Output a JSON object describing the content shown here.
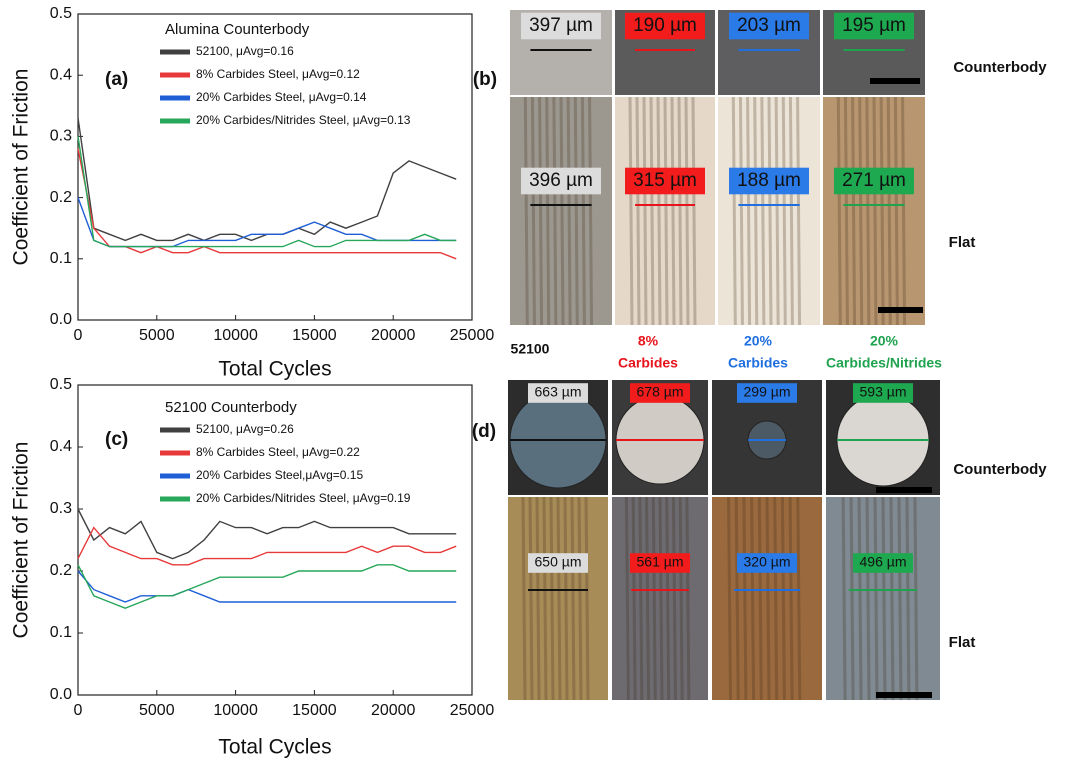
{
  "chart_data": [
    {
      "type": "line",
      "panel_label": "(a)",
      "legend_title": "Alumina Counterbody",
      "xlabel": "Total Cycles",
      "ylabel": "Coefficient of Friction",
      "x": [
        0,
        1000,
        2000,
        3000,
        4000,
        5000,
        6000,
        7000,
        8000,
        9000,
        10000,
        11000,
        12000,
        13000,
        14000,
        15000,
        16000,
        17000,
        18000,
        19000,
        20000,
        21000,
        22000,
        23000,
        24000
      ],
      "series": [
        {
          "name": "52100, μAvg=0.16",
          "color": "#404040",
          "values": [
            0.33,
            0.15,
            0.14,
            0.13,
            0.14,
            0.13,
            0.13,
            0.14,
            0.13,
            0.14,
            0.14,
            0.13,
            0.14,
            0.14,
            0.15,
            0.14,
            0.16,
            0.15,
            0.16,
            0.17,
            0.24,
            0.26,
            0.25,
            0.24,
            0.23
          ]
        },
        {
          "name": "8% Carbides Steel, μAvg=0.12",
          "color": "#e8393a",
          "values": [
            0.28,
            0.15,
            0.12,
            0.12,
            0.11,
            0.12,
            0.11,
            0.11,
            0.12,
            0.11,
            0.11,
            0.11,
            0.11,
            0.11,
            0.11,
            0.11,
            0.11,
            0.11,
            0.11,
            0.11,
            0.11,
            0.11,
            0.11,
            0.11,
            0.1
          ]
        },
        {
          "name": "20% Carbides Steel, μAvg=0.14",
          "color": "#1f5fd6",
          "values": [
            0.2,
            0.13,
            0.12,
            0.12,
            0.12,
            0.12,
            0.12,
            0.13,
            0.13,
            0.13,
            0.13,
            0.14,
            0.14,
            0.14,
            0.15,
            0.16,
            0.15,
            0.14,
            0.14,
            0.13,
            0.13,
            0.13,
            0.13,
            0.13,
            0.13
          ]
        },
        {
          "name": "20% Carbides/Nitrides Steel, μAvg=0.13",
          "color": "#27a75a",
          "values": [
            0.3,
            0.13,
            0.12,
            0.12,
            0.12,
            0.12,
            0.12,
            0.12,
            0.12,
            0.12,
            0.12,
            0.12,
            0.12,
            0.12,
            0.13,
            0.12,
            0.12,
            0.13,
            0.13,
            0.13,
            0.13,
            0.13,
            0.14,
            0.13,
            0.13
          ]
        }
      ],
      "xlim": [
        0,
        25000
      ],
      "xticks": [
        0,
        5000,
        10000,
        15000,
        20000,
        25000
      ],
      "ylim": [
        0,
        0.5
      ],
      "yticks": [
        {
          "value": 0,
          "label": "0.0"
        },
        0.1,
        0.2,
        0.3,
        0.4,
        0.5
      ]
    },
    {
      "type": "line",
      "panel_label": "(c)",
      "legend_title": "52100 Counterbody",
      "xlabel": "Total Cycles",
      "ylabel": "Coefficient of Friction",
      "x": [
        0,
        1000,
        2000,
        3000,
        4000,
        5000,
        6000,
        7000,
        8000,
        9000,
        10000,
        11000,
        12000,
        13000,
        14000,
        15000,
        16000,
        17000,
        18000,
        19000,
        20000,
        21000,
        22000,
        23000,
        24000
      ],
      "series": [
        {
          "name": "52100, μAvg=0.26",
          "color": "#404040",
          "values": [
            0.3,
            0.25,
            0.27,
            0.26,
            0.28,
            0.23,
            0.22,
            0.23,
            0.25,
            0.28,
            0.27,
            0.27,
            0.26,
            0.27,
            0.27,
            0.28,
            0.27,
            0.27,
            0.27,
            0.27,
            0.27,
            0.26,
            0.26,
            0.26,
            0.26
          ]
        },
        {
          "name": "8% Carbides Steel, μAvg=0.22",
          "color": "#e8393a",
          "values": [
            0.22,
            0.27,
            0.24,
            0.23,
            0.22,
            0.22,
            0.21,
            0.21,
            0.22,
            0.22,
            0.22,
            0.22,
            0.23,
            0.23,
            0.23,
            0.23,
            0.23,
            0.23,
            0.24,
            0.23,
            0.24,
            0.24,
            0.23,
            0.23,
            0.24
          ]
        },
        {
          "name": "20% Carbides Steel,μAvg=0.15",
          "color": "#1f5fd6",
          "values": [
            0.2,
            0.17,
            0.16,
            0.15,
            0.16,
            0.16,
            0.16,
            0.17,
            0.16,
            0.15,
            0.15,
            0.15,
            0.15,
            0.15,
            0.15,
            0.15,
            0.15,
            0.15,
            0.15,
            0.15,
            0.15,
            0.15,
            0.15,
            0.15,
            0.15
          ]
        },
        {
          "name": "20% Carbides/Nitrides Steel, μAvg=0.19",
          "color": "#27a75a",
          "values": [
            0.21,
            0.16,
            0.15,
            0.14,
            0.15,
            0.16,
            0.16,
            0.17,
            0.18,
            0.19,
            0.19,
            0.19,
            0.19,
            0.19,
            0.2,
            0.2,
            0.2,
            0.2,
            0.2,
            0.21,
            0.21,
            0.2,
            0.2,
            0.2,
            0.2
          ]
        }
      ],
      "xlim": [
        0,
        25000
      ],
      "xticks": [
        0,
        5000,
        10000,
        15000,
        20000,
        25000
      ],
      "ylim": [
        0,
        0.5
      ],
      "yticks": [
        {
          "value": 0,
          "label": "0.0"
        },
        0.1,
        0.2,
        0.3,
        0.4,
        0.5
      ]
    }
  ],
  "samples": {
    "names": [
      [
        "52100"
      ],
      [
        "8%",
        "Carbides"
      ],
      [
        "20%",
        "Carbides"
      ],
      [
        "20%",
        "Carbides/Nitrides"
      ]
    ],
    "colors": [
      "#111111",
      "#e8141b",
      "#1f6fe0",
      "#1fa34e"
    ]
  },
  "micrographs": [
    {
      "label": "(b)",
      "row_labels": [
        "Counterbody",
        "Flat"
      ],
      "counterbody": [
        "397 µm",
        "190 µm",
        "203 µm",
        "195 µm"
      ],
      "flat": [
        "396 µm",
        "315 µm",
        "188 µm",
        "271 µm"
      ]
    },
    {
      "label": "(d)",
      "row_labels": [
        "Counterbody",
        "Flat"
      ],
      "counterbody": [
        "663 µm",
        "678 µm",
        "299 µm",
        "593 µm"
      ],
      "flat": [
        "650 µm",
        "561 µm",
        "320 µm",
        "496 µm"
      ]
    }
  ]
}
